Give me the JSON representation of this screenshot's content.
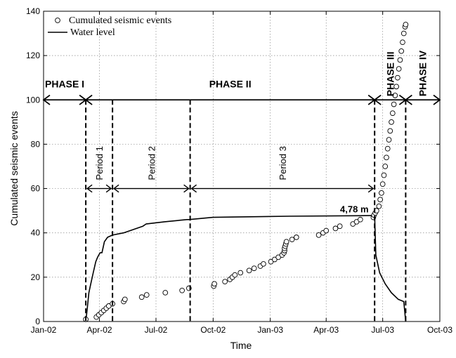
{
  "chart_data": {
    "type": "scatter",
    "xlabel": "Time",
    "ylabel": "Cumulated seismic events",
    "xlim": [
      "2002-01-01",
      "2003-10-01"
    ],
    "ylim": [
      0,
      140
    ],
    "x_ticks": [
      {
        "date": "2002-01-01",
        "label": "Jan-02"
      },
      {
        "date": "2002-04-01",
        "label": "Apr-02"
      },
      {
        "date": "2002-07-01",
        "label": "Jul-02"
      },
      {
        "date": "2002-10-01",
        "label": "Oct-02"
      },
      {
        "date": "2003-01-01",
        "label": "Jan-03"
      },
      {
        "date": "2003-04-01",
        "label": "Apr-03"
      },
      {
        "date": "2003-07-01",
        "label": "Jul-03"
      },
      {
        "date": "2003-10-01",
        "label": "Oct-03"
      }
    ],
    "y_ticks": [
      0,
      20,
      40,
      60,
      80,
      100,
      120,
      140
    ],
    "grid": true,
    "legend": {
      "placement": "top-left",
      "entries": [
        {
          "label": "Cumulated seismic events",
          "marker": "circle"
        },
        {
          "label": "Water level",
          "marker": "line"
        }
      ]
    },
    "series": [
      {
        "name": "Cumulated seismic events",
        "kind": "scatter",
        "points": [
          [
            "2002-03-10",
            1
          ],
          [
            "2002-03-27",
            2
          ],
          [
            "2002-03-31",
            3
          ],
          [
            "2002-04-04",
            4
          ],
          [
            "2002-04-08",
            5
          ],
          [
            "2002-04-12",
            6
          ],
          [
            "2002-04-16",
            7
          ],
          [
            "2002-04-22",
            8
          ],
          [
            "2002-05-10",
            9
          ],
          [
            "2002-05-12",
            10
          ],
          [
            "2002-06-08",
            11
          ],
          [
            "2002-06-16",
            12
          ],
          [
            "2002-07-16",
            13
          ],
          [
            "2002-08-12",
            14
          ],
          [
            "2002-08-23",
            15
          ],
          [
            "2002-10-02",
            16
          ],
          [
            "2002-10-03",
            17
          ],
          [
            "2002-10-20",
            18
          ],
          [
            "2002-10-28",
            19
          ],
          [
            "2002-11-01",
            20
          ],
          [
            "2002-11-05",
            21
          ],
          [
            "2002-11-14",
            22
          ],
          [
            "2002-11-28",
            23
          ],
          [
            "2002-12-06",
            24
          ],
          [
            "2002-12-16",
            25
          ],
          [
            "2002-12-21",
            26
          ],
          [
            "2003-01-02",
            27
          ],
          [
            "2003-01-08",
            28
          ],
          [
            "2003-01-14",
            29
          ],
          [
            "2003-01-20",
            30
          ],
          [
            "2003-01-23",
            31
          ],
          [
            "2003-01-24",
            32
          ],
          [
            "2003-01-24",
            33
          ],
          [
            "2003-01-25",
            34
          ],
          [
            "2003-01-26",
            35
          ],
          [
            "2003-01-27",
            36
          ],
          [
            "2003-02-05",
            37
          ],
          [
            "2003-02-12",
            38
          ],
          [
            "2003-03-20",
            39
          ],
          [
            "2003-03-27",
            40
          ],
          [
            "2003-04-01",
            41
          ],
          [
            "2003-04-16",
            42
          ],
          [
            "2003-04-23",
            43
          ],
          [
            "2003-05-14",
            44
          ],
          [
            "2003-05-20",
            45
          ],
          [
            "2003-05-26",
            46
          ],
          [
            "2003-06-16",
            47
          ],
          [
            "2003-06-17",
            48
          ],
          [
            "2003-06-19",
            49
          ],
          [
            "2003-06-21",
            50
          ],
          [
            "2003-06-25",
            52
          ],
          [
            "2003-06-27",
            55
          ],
          [
            "2003-06-29",
            58
          ],
          [
            "2003-07-01",
            62
          ],
          [
            "2003-07-03",
            66
          ],
          [
            "2003-07-05",
            70
          ],
          [
            "2003-07-07",
            74
          ],
          [
            "2003-07-09",
            78
          ],
          [
            "2003-07-11",
            82
          ],
          [
            "2003-07-13",
            86
          ],
          [
            "2003-07-15",
            90
          ],
          [
            "2003-07-17",
            94
          ],
          [
            "2003-07-19",
            98
          ],
          [
            "2003-07-21",
            102
          ],
          [
            "2003-07-23",
            106
          ],
          [
            "2003-07-25",
            110
          ],
          [
            "2003-07-27",
            114
          ],
          [
            "2003-07-29",
            118
          ],
          [
            "2003-07-31",
            122
          ],
          [
            "2003-08-02",
            126
          ],
          [
            "2003-08-04",
            130
          ],
          [
            "2003-08-06",
            133
          ],
          [
            "2003-08-07",
            134
          ]
        ]
      },
      {
        "name": "Water level",
        "kind": "line",
        "points": [
          [
            "2002-03-10",
            0
          ],
          [
            "2002-03-12",
            5
          ],
          [
            "2002-03-15",
            13
          ],
          [
            "2002-03-18",
            17
          ],
          [
            "2002-03-22",
            22
          ],
          [
            "2002-03-26",
            27
          ],
          [
            "2002-03-29",
            29
          ],
          [
            "2002-04-02",
            31
          ],
          [
            "2002-04-05",
            31
          ],
          [
            "2002-04-09",
            36
          ],
          [
            "2002-04-14",
            38
          ],
          [
            "2002-04-22",
            39
          ],
          [
            "2002-05-10",
            40
          ],
          [
            "2002-06-10",
            43
          ],
          [
            "2002-06-15",
            44
          ],
          [
            "2002-07-15",
            45
          ],
          [
            "2002-08-20",
            46
          ],
          [
            "2002-08-23",
            46
          ],
          [
            "2002-10-01",
            47
          ],
          [
            "2003-02-01",
            47.5
          ],
          [
            "2003-06-15",
            47.8
          ],
          [
            "2003-06-18",
            47.8
          ],
          [
            "2003-06-20",
            30
          ],
          [
            "2003-06-26",
            22
          ],
          [
            "2003-07-05",
            17
          ],
          [
            "2003-07-15",
            13
          ],
          [
            "2003-07-26",
            10
          ],
          [
            "2003-08-04",
            9
          ],
          [
            "2003-08-07",
            0
          ]
        ]
      }
    ],
    "phase_dividers": [
      "2002-03-10",
      "2003-06-18",
      "2003-08-07"
    ],
    "period_dividers": [
      "2002-03-10",
      "2002-04-22",
      "2002-08-25",
      "2003-06-18"
    ],
    "phases": [
      {
        "label": "PHASE I",
        "from": "2001-12-01",
        "to": "2002-03-10",
        "y": 100,
        "orientation": "horizontal"
      },
      {
        "label": "PHASE II",
        "from": "2002-03-10",
        "to": "2003-06-18",
        "y": 100,
        "orientation": "horizontal"
      },
      {
        "label": "PHASE III",
        "from": "2003-06-18",
        "to": "2003-08-07",
        "y": 100,
        "orientation": "vertical"
      },
      {
        "label": "PHASE IV",
        "from": "2003-08-07",
        "to": "2003-10-01",
        "y": 100,
        "orientation": "vertical"
      }
    ],
    "periods": [
      {
        "label": "Period 1",
        "from": "2002-03-10",
        "to": "2002-04-22",
        "y": 60
      },
      {
        "label": "Period 2",
        "from": "2002-04-22",
        "to": "2002-08-25",
        "y": 60
      },
      {
        "label": "Period 3",
        "from": "2002-08-25",
        "to": "2003-06-18",
        "y": 60
      }
    ],
    "annotations": [
      {
        "text": "4,78 m",
        "x": "2003-06-15",
        "y": 48
      }
    ]
  }
}
